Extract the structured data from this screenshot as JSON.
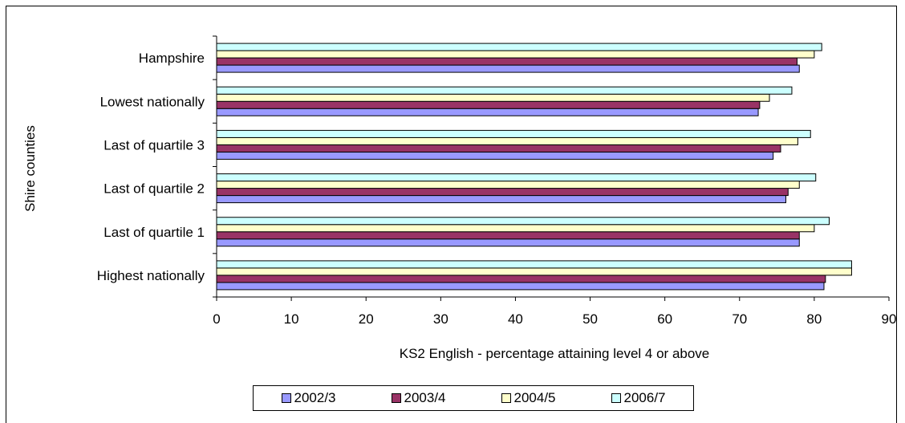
{
  "chart_data": {
    "type": "bar",
    "orientation": "horizontal",
    "categories": [
      "Highest nationally",
      "Last of quartile 1",
      "Last of quartile 2",
      "Last of quartile 3",
      "Lowest nationally",
      "Hampshire"
    ],
    "series": [
      {
        "name": "2002/3",
        "color": "#9999ff",
        "values": [
          81.3,
          78.0,
          76.2,
          74.5,
          72.5,
          78.0
        ]
      },
      {
        "name": "2003/4",
        "color": "#993366",
        "values": [
          81.5,
          78.0,
          76.5,
          75.5,
          72.7,
          77.7
        ]
      },
      {
        "name": "2004/5",
        "color": "#ffffcc",
        "values": [
          85.0,
          80.0,
          78.0,
          77.8,
          74.0,
          80.0
        ]
      },
      {
        "name": "2006/7",
        "color": "#ccffff",
        "values": [
          85.0,
          82.0,
          80.2,
          79.5,
          77.0,
          81.0
        ]
      }
    ],
    "xlabel": "KS2 English - percentage attaining level 4 or above",
    "ylabel": "Shire counties",
    "xlim": [
      0,
      90
    ],
    "xticks": [
      0,
      10,
      20,
      30,
      40,
      50,
      60,
      70,
      80,
      90
    ],
    "legend_position": "bottom"
  }
}
